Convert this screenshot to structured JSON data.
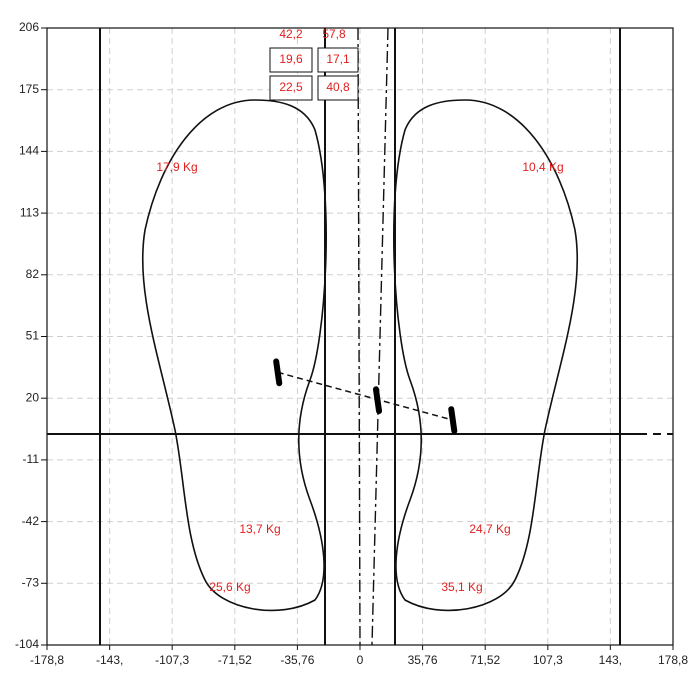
{
  "chart_data": {
    "type": "scatter",
    "x": [
      -47,
      10,
      53
    ],
    "y": [
      33,
      19,
      9
    ],
    "color": "#000000",
    "xlim": [
      -178.8,
      178.8
    ],
    "ylim": [
      -104,
      206
    ],
    "xticks": [
      {
        "value": -178.8,
        "label": "-178,8"
      },
      {
        "value": -143,
        "label": "-143,"
      },
      {
        "value": -107.3,
        "label": "-107,3"
      },
      {
        "value": -71.52,
        "label": "-71,52"
      },
      {
        "value": -35.76,
        "label": "-35,76"
      },
      0,
      {
        "value": 35.76,
        "label": "35,76"
      },
      {
        "value": 71.52,
        "label": "71,52"
      },
      {
        "value": 107.3,
        "label": "107,3"
      },
      {
        "value": 143,
        "label": "143,"
      },
      {
        "value": 178.8,
        "label": "178,8"
      }
    ],
    "yticks": [
      206,
      175,
      144,
      113,
      82,
      51,
      20,
      -11,
      -42,
      -73,
      -104
    ],
    "grid": true,
    "annotations": [
      "42,2",
      "57,8",
      "19,6",
      "17,1",
      "22,5",
      "40,8",
      "17,9 Kg",
      "10,4 Kg",
      "13,7 Kg",
      "24,7 Kg",
      "25,6 Kg",
      "35,1 Kg"
    ]
  }
}
